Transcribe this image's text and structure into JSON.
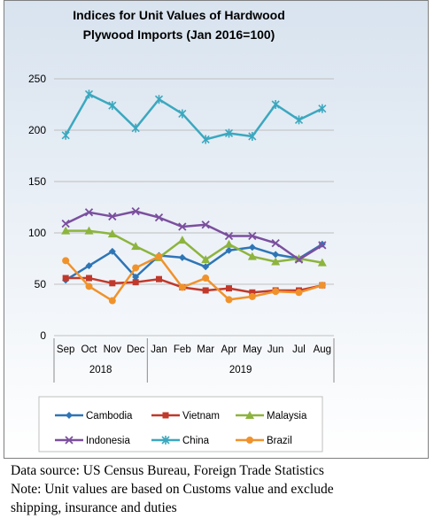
{
  "chart_data": {
    "type": "line",
    "title_lines": [
      "Indices for Unit Values of Hardwood",
      "Plywood Imports (Jan 2016=100)"
    ],
    "categories": [
      "Sep",
      "Oct",
      "Nov",
      "Dec",
      "Jan",
      "Feb",
      "Mar",
      "Apr",
      "May",
      "Jun",
      "Jul",
      "Aug"
    ],
    "year_groups": [
      {
        "label": "2018",
        "start": 0,
        "end": 3
      },
      {
        "label": "2019",
        "start": 4,
        "end": 11
      }
    ],
    "yticks": [
      "0",
      "50",
      "100",
      "150",
      "200",
      "250"
    ],
    "ylim": [
      0,
      250
    ],
    "grid": true,
    "legend_position": "bottom",
    "series": [
      {
        "name": "Cambodia",
        "color": "#2E75B6",
        "marker": "diamond",
        "values": [
          54,
          68,
          82,
          57,
          78,
          76,
          67,
          83,
          86,
          79,
          75,
          89
        ]
      },
      {
        "name": "Vietnam",
        "color": "#C0392B",
        "marker": "square",
        "values": [
          56,
          56,
          51,
          52,
          55,
          47,
          44,
          46,
          42,
          44,
          44,
          49
        ]
      },
      {
        "name": "Malaysia",
        "color": "#8DB43E",
        "marker": "triangle",
        "values": [
          102,
          102,
          99,
          87,
          76,
          93,
          74,
          89,
          77,
          72,
          75,
          71
        ]
      },
      {
        "name": "Indonesia",
        "color": "#7B4F9E",
        "marker": "x",
        "values": [
          109,
          120,
          116,
          121,
          115,
          106,
          108,
          97,
          97,
          90,
          74,
          88
        ]
      },
      {
        "name": "China",
        "color": "#3BA8BF",
        "marker": "star",
        "values": [
          195,
          235,
          224,
          202,
          230,
          216,
          191,
          197,
          194,
          225,
          210,
          221
        ]
      },
      {
        "name": "Brazil",
        "color": "#F0922B",
        "marker": "circle",
        "values": [
          73,
          48,
          34,
          66,
          77,
          47,
          56,
          35,
          38,
          43,
          42,
          49
        ]
      }
    ]
  },
  "footer": {
    "source": "Data source: US Census Bureau, Foreign Trade Statistics",
    "note_line1": "Note: Unit values are based on Customs value and exclude",
    "note_line2": "shipping, insurance and duties"
  }
}
